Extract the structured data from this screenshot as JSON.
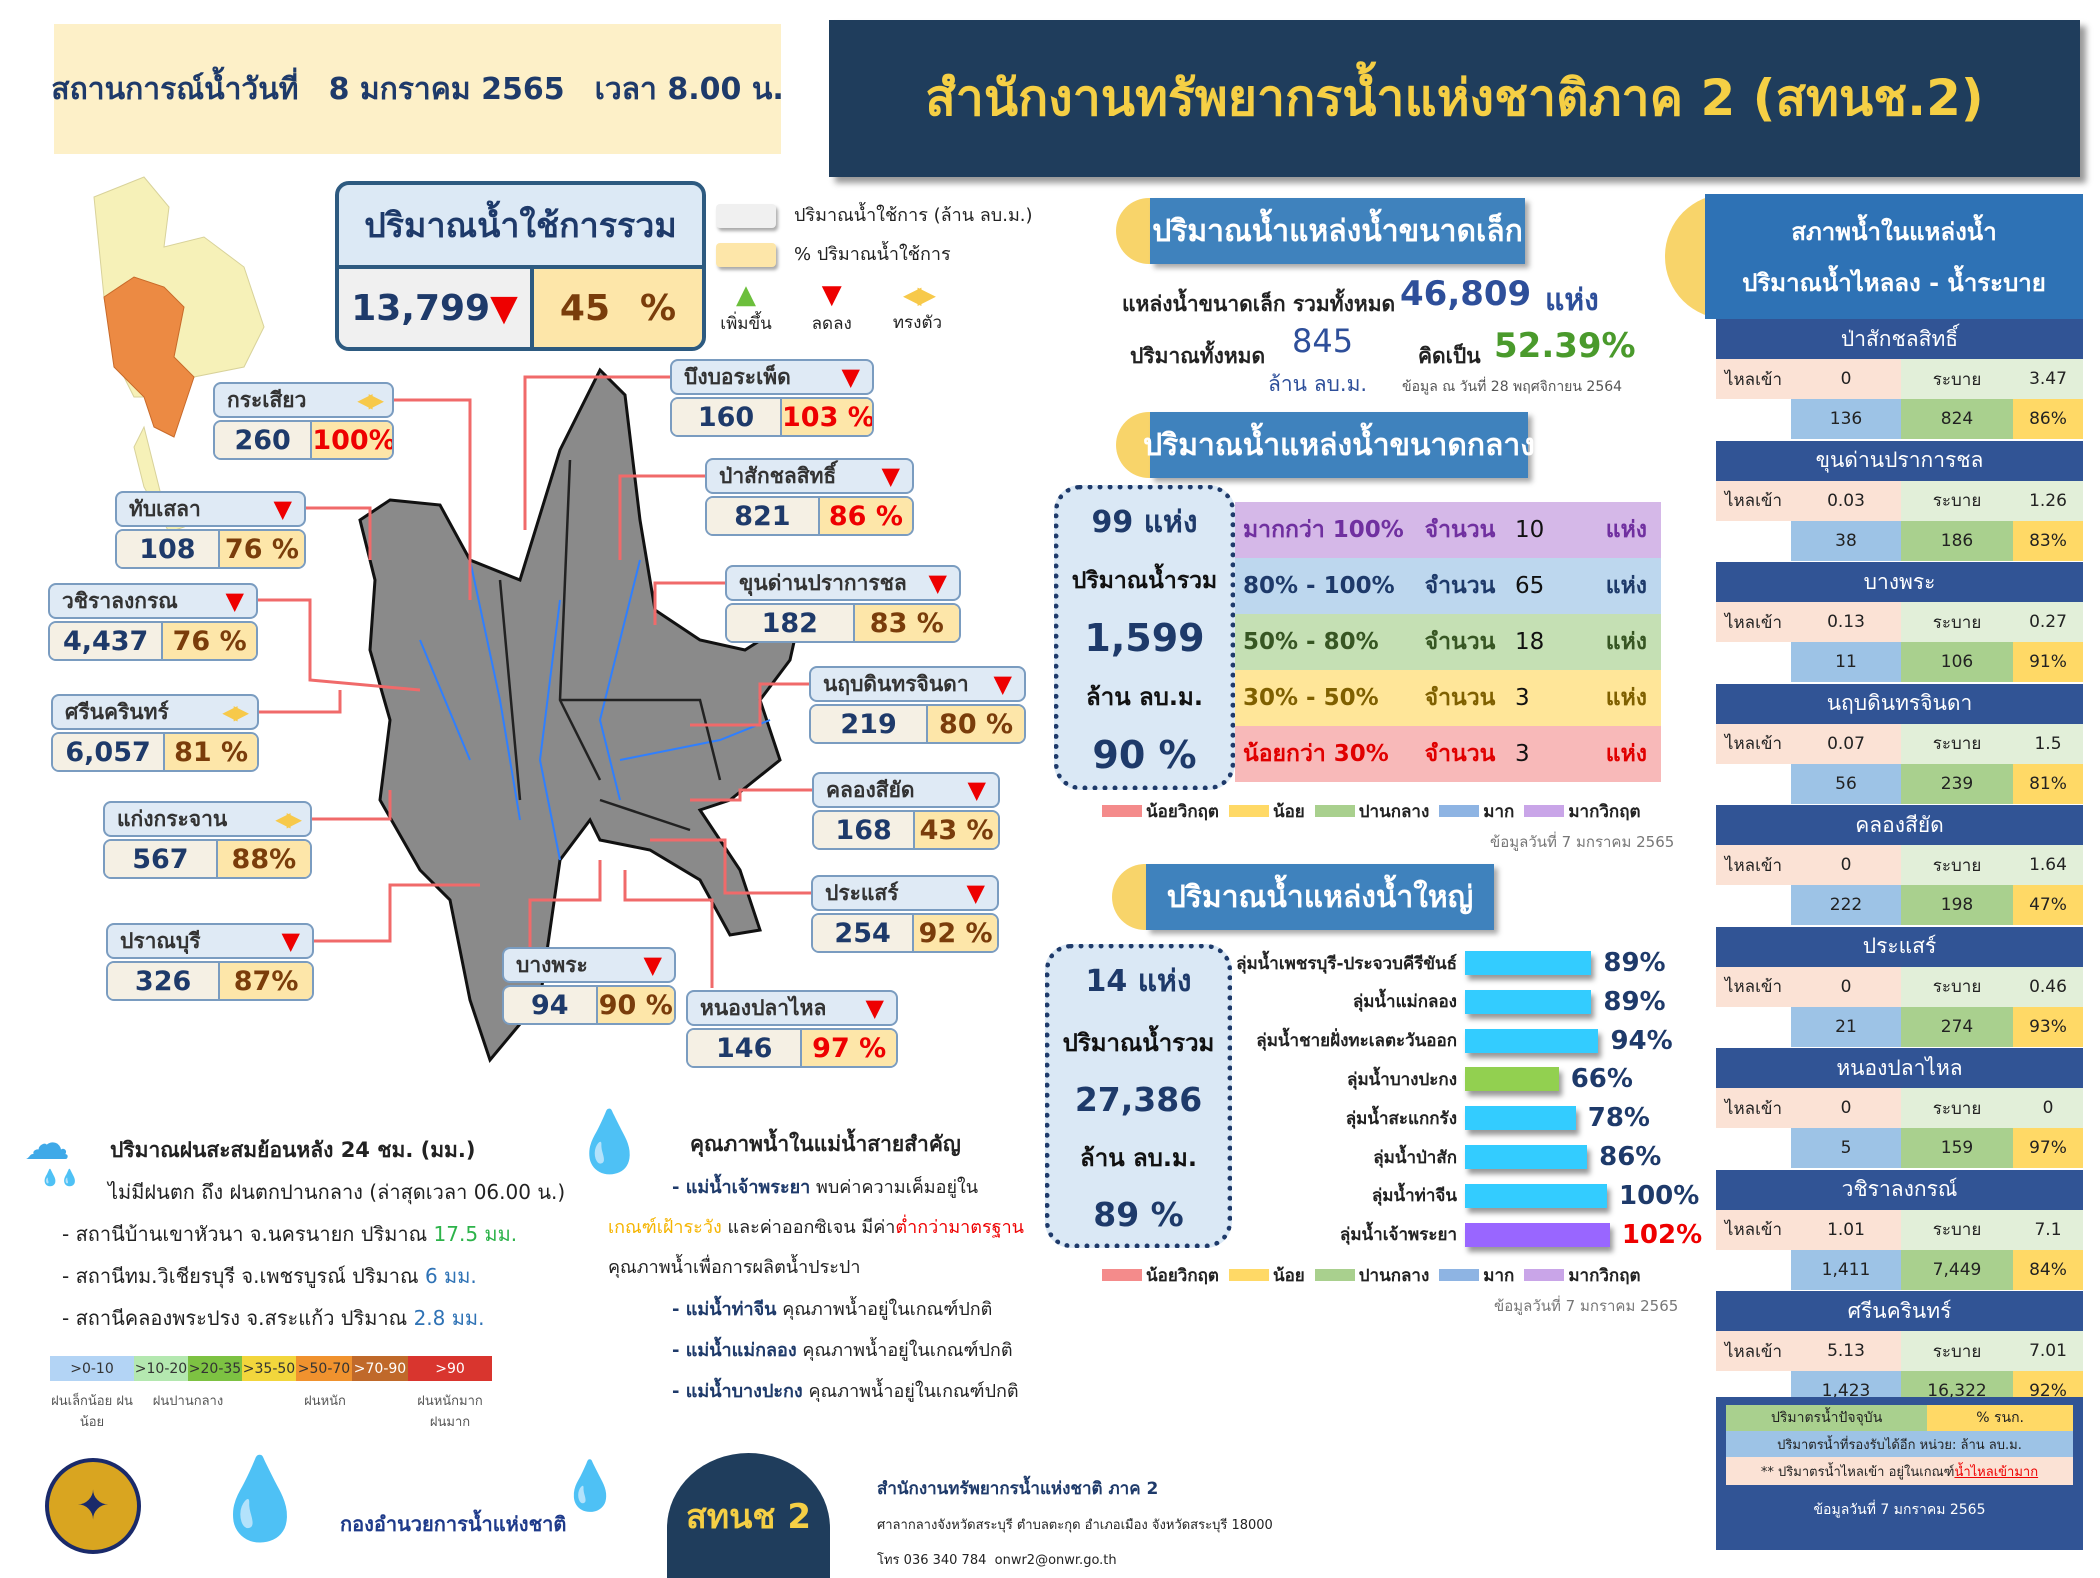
{
  "header": {
    "situation_label": "สถานการณ์น้ำวันที่",
    "date": "8 มกราคม 2565",
    "time": "เวลา 8.00 น.",
    "title": "สำนักงานทรัพยากรน้ำแห่งชาติภาค 2 (สทนช.2)"
  },
  "total_usage": {
    "title": "ปริมาณน้ำใช้การรวม",
    "value": "13,799",
    "trend": "down",
    "percent": "45",
    "percent_sign": "%"
  },
  "legend": {
    "usable_volume": "ปริมาณน้ำใช้การ (ล้าน ลบ.ม.)",
    "usable_percent": "% ปริมาณน้ำใช้การ",
    "up": "เพิ่มขึ้น",
    "down": "ลดลง",
    "steady": "ทรงตัว",
    "up_color": "#6cbf3c",
    "down_color": "#e00000",
    "steady_color": "#f7c94a"
  },
  "map_reservoirs": [
    {
      "name": "กระเสียว",
      "trend": "steady",
      "value": "260",
      "percent": "100%",
      "alert": true
    },
    {
      "name": "ทับเสลา",
      "trend": "down",
      "value": "108",
      "percent": "76 %",
      "alert": false
    },
    {
      "name": "วชิราลงกรณ",
      "trend": "down",
      "value": "4,437",
      "percent": "76 %",
      "alert": false
    },
    {
      "name": "ศรีนครินทร์",
      "trend": "steady",
      "value": "6,057",
      "percent": "81 %",
      "alert": false
    },
    {
      "name": "แก่งกระจาน",
      "trend": "steady",
      "value": "567",
      "percent": "88%",
      "alert": false
    },
    {
      "name": "ปราณบุรี",
      "trend": "down",
      "value": "326",
      "percent": "87%",
      "alert": false
    },
    {
      "name": "บึงบอระเพ็ด",
      "trend": "down",
      "value": "160",
      "percent": "103 %",
      "alert": true
    },
    {
      "name": "ป่าสักชลสิทธิ์",
      "trend": "down",
      "value": "821",
      "percent": "86 %",
      "alert": true
    },
    {
      "name": "ขุนด่านปราการชล",
      "trend": "down",
      "value": "182",
      "percent": "83 %",
      "alert": false
    },
    {
      "name": "นฤบดินทรจินดา",
      "trend": "down",
      "value": "219",
      "percent": "80 %",
      "alert": false
    },
    {
      "name": "คลองสียัด",
      "trend": "down",
      "value": "168",
      "percent": "43 %",
      "alert": false
    },
    {
      "name": "ประแสร์",
      "trend": "down",
      "value": "254",
      "percent": "92 %",
      "alert": false
    },
    {
      "name": "บางพระ",
      "trend": "down",
      "value": "94",
      "percent": "90 %",
      "alert": false
    },
    {
      "name": "หนองปลาไหล",
      "trend": "down",
      "value": "146",
      "percent": "97 %",
      "alert": true
    }
  ],
  "small": {
    "title": "ปริมาณน้ำแหล่งน้ำขนาดเล็ก",
    "count_label": "แหล่งน้ำขนาดเล็ก รวมทั้งหมด",
    "count": "46,809",
    "count_unit": "แห่ง",
    "volume_label": "ปริมาณทั้งหมด",
    "volume": "845",
    "volume_unit": "ล้าน ลบ.ม.",
    "percent_label": "คิดเป็น",
    "percent": "52.39%",
    "source": "ข้อมูล ณ วันที่ 28 พฤศจิกายน 2564"
  },
  "medium": {
    "title": "ปริมาณน้ำแหล่งน้ำขนาดกลาง",
    "count": "99 แห่ง",
    "volume_label": "ปริมาณน้ำรวม",
    "volume": "1,599",
    "unit": "ล้าน ลบ.ม.",
    "percent": "90 %",
    "rows": [
      {
        "range": "มากกว่า 100%",
        "count_label": "จำนวน",
        "count": "10",
        "unit": "แห่ง",
        "bg": "#d5b8e8",
        "color": "#7030a0"
      },
      {
        "range": "80% - 100%",
        "count_label": "จำนวน",
        "count": "65",
        "unit": "แห่ง",
        "bg": "#bdd7ee",
        "color": "#1e3a6a"
      },
      {
        "range": "50% - 80%",
        "count_label": "จำนวน",
        "count": "18",
        "unit": "แห่ง",
        "bg": "#c5e0b4",
        "color": "#375623"
      },
      {
        "range": "30% - 50%",
        "count_label": "จำนวน",
        "count": "3",
        "unit": "แห่ง",
        "bg": "#ffe699",
        "color": "#7f6000"
      },
      {
        "range": "น้อยกว่า 30%",
        "count_label": "จำนวน",
        "count": "3",
        "unit": "แห่ง",
        "bg": "#f8b9b9",
        "color": "#e00000"
      }
    ],
    "source": "ข้อมูลวันที่ 7 มกราคม 2565"
  },
  "status_legend": [
    {
      "label": "น้อยวิกฤต",
      "color": "#f48b8b"
    },
    {
      "label": "น้อย",
      "color": "#ffd966"
    },
    {
      "label": "ปานกลาง",
      "color": "#a9d08e"
    },
    {
      "label": "มาก",
      "color": "#8eb4e3"
    },
    {
      "label": "มากวิกฤต",
      "color": "#c9a5e8"
    }
  ],
  "large": {
    "title": "ปริมาณน้ำแหล่งน้ำใหญ่",
    "count": "14 แห่ง",
    "volume_label": "ปริมาณน้ำรวม",
    "volume": "27,386",
    "unit": "ล้าน ลบ.ม.",
    "percent": "89 %",
    "basins": [
      {
        "name": "ลุ่มน้ำเพชรบุรี-ประจวบคีรีขันธ์",
        "value": 89,
        "label": "89%",
        "color": "#33ccff"
      },
      {
        "name": "ลุ่มน้ำแม่กลอง",
        "value": 89,
        "label": "89%",
        "color": "#33ccff"
      },
      {
        "name": "ลุ่มน้ำชายฝั่งทะเลตะวันออก",
        "value": 94,
        "label": "94%",
        "color": "#33ccff"
      },
      {
        "name": "ลุ่มน้ำบางปะกง",
        "value": 66,
        "label": "66%",
        "color": "#92d050"
      },
      {
        "name": "ลุ่มน้ำสะแกกรัง",
        "value": 78,
        "label": "78%",
        "color": "#33ccff"
      },
      {
        "name": "ลุ่มน้ำป่าสัก",
        "value": 86,
        "label": "86%",
        "color": "#33ccff"
      },
      {
        "name": "ลุ่มน้ำท่าจีน",
        "value": 100,
        "label": "100%",
        "color": "#33ccff"
      },
      {
        "name": "ลุ่มน้ำเจ้าพระยา",
        "value": 102,
        "label": "102%",
        "color": "#9966ff",
        "alert": true
      }
    ],
    "source": "ข้อมูลวันที่ 7 มกราคม 2565"
  },
  "right_panel": {
    "title_line1": "สภาพน้ำในแหล่งน้ำ",
    "title_line2": "ปริมาณน้ำไหลลง - น้ำระบาย",
    "inflow_label": "ไหลเข้า",
    "release_label": "ระบาย",
    "reservoirs": [
      {
        "name": "ป่าสักชลสิทธิ์",
        "inflow": "0",
        "release": "3.47",
        "remaining": "136",
        "current": "824",
        "percent": "86%"
      },
      {
        "name": "ขุนด่านปราการชล",
        "inflow": "0.03",
        "release": "1.26",
        "remaining": "38",
        "current": "186",
        "percent": "83%"
      },
      {
        "name": "บางพระ",
        "inflow": "0.13",
        "release": "0.27",
        "remaining": "11",
        "current": "106",
        "percent": "91%"
      },
      {
        "name": "นฤบดินทรจินดา",
        "inflow": "0.07",
        "release": "1.5",
        "remaining": "56",
        "current": "239",
        "percent": "81%"
      },
      {
        "name": "คลองสียัด",
        "inflow": "0",
        "release": "1.64",
        "remaining": "222",
        "current": "198",
        "percent": "47%"
      },
      {
        "name": "ประแสร์",
        "inflow": "0",
        "release": "0.46",
        "remaining": "21",
        "current": "274",
        "percent": "93%"
      },
      {
        "name": "หนองปลาไหล",
        "inflow": "0",
        "release": "0",
        "remaining": "5",
        "current": "159",
        "percent": "97%"
      },
      {
        "name": "วชิราลงกรณ์",
        "inflow": "1.01",
        "release": "7.1",
        "remaining": "1,411",
        "current": "7,449",
        "percent": "84%"
      },
      {
        "name": "ศรีนครินทร์",
        "inflow": "5.13",
        "release": "7.01",
        "remaining": "1,423",
        "current": "16,322",
        "percent": "92%"
      }
    ],
    "footer": {
      "current_label": "ปริมาตรน้ำปัจจุบัน",
      "percent_label": "% รนก.",
      "remaining_label": "ปริมาตรน้ำที่รองรับได้อีก  หน่วย: ล้าน ลบ.ม.",
      "note": "** ปริมาตรน้ำไหลเข้า อยู่ในเกณฑ์",
      "note_link": "น้ำไหลเข้ามาก",
      "date": "ข้อมูลวันที่ 7 มกราคม 2565"
    }
  },
  "rain": {
    "title": "ปริมาณฝนสะสมย้อนหลัง 24 ชม. (มม.)",
    "summary": "ไม่มีฝนตก ถึง ฝนตกปานกลาง (ล่าสุดเวลา 06.00 น.)",
    "stations": [
      {
        "text": "- สถานีบ้านเขาหัวนา จ.นครนายก ปริมาณ",
        "amount": "17.5 มม.",
        "color": "#2db34a"
      },
      {
        "text": "- สถานีทม.วิเชียรบุรี จ.เพชรบูรณ์ ปริมาณ",
        "amount": "6 มม.",
        "color": "#2e72b5"
      },
      {
        "text": "- สถานีคลองพระปรง จ.สระแก้ว ปริมาณ",
        "amount": "2.8 มม.",
        "color": "#2e72b5"
      }
    ],
    "scale": [
      {
        "label": ">0-10",
        "color": "#b3d4f5"
      },
      {
        "label": ">10-20",
        "color": "#b4e8b0"
      },
      {
        "label": ">20-35",
        "color": "#7dc242"
      },
      {
        "label": ">35-50",
        "color": "#f2d63c"
      },
      {
        "label": ">50-70",
        "color": "#f0922e"
      },
      {
        "label": ">70-90",
        "color": "#c0692a"
      },
      {
        "label": ">90",
        "color": "#d9352e"
      }
    ],
    "scale_groups": [
      "ฝนเล็กน้อย ฝนน้อย",
      "ฝนปานกลาง",
      "ฝนหนัก",
      "ฝนหนักมาก ฝนมาก"
    ]
  },
  "water_quality": {
    "title": "คุณภาพน้ำในแม่น้ำสายสำคัญ",
    "item1_river": "- แม่น้ำเจ้าพระยา",
    "item1_text": "พบค่าความเค็มอยู่ใน",
    "item1_warn": "เกณฑ์เฝ้าระวัง",
    "item1_mid": "และค่าออกซิเจน มีค่า",
    "item1_bad": "ต่ำกว่ามาตรฐาน",
    "item1_end": "คุณภาพน้ำเพื่อการผลิตน้ำประปา",
    "items": [
      {
        "river": "- แม่น้ำท่าจีน",
        "status": "คุณภาพน้ำอยู่ในเกณฑ์ปกติ"
      },
      {
        "river": "- แม่น้ำแม่กลอง",
        "status": "คุณภาพน้ำอยู่ในเกณฑ์ปกติ"
      },
      {
        "river": "- แม่น้ำบางปะกง",
        "status": "คุณภาพน้ำอยู่ในเกณฑ์ปกติ"
      }
    ]
  },
  "footer": {
    "logo_text": "กองอำนวยการน้ำแห่งชาติ",
    "badge": "สทนช 2",
    "org": "สำนักงานทรัพยากรน้ำแห่งชาติ ภาค 2",
    "address": "ศาลากลางจังหวัดสระบุรี ตำบลตะกุด อำเภอเมือง จังหวัดสระบุรี 18000",
    "phone": "โทร 036 340 784",
    "email": "onwr2@onwr.go.th"
  }
}
